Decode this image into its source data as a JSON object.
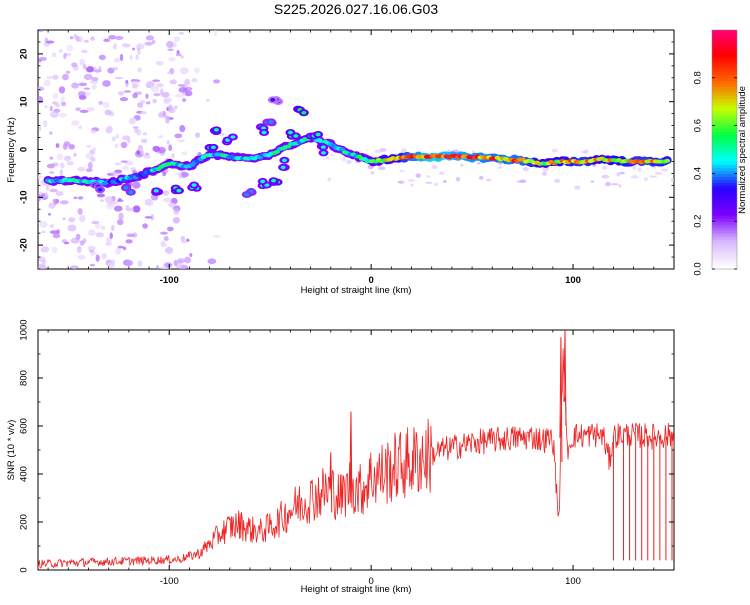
{
  "chart_data": [
    {
      "type": "heatmap",
      "title": "S225.2026.027.16.06.G03",
      "xlabel": "Height of straight line (km)",
      "ylabel": "Frequency (Hz)",
      "xlim": [
        -165,
        150
      ],
      "ylim": [
        -25,
        25
      ],
      "x_ticks": [
        -100,
        0,
        100
      ],
      "x_tick_labels": [
        "-100",
        "0",
        "100"
      ],
      "y_ticks": [
        -20,
        -10,
        0,
        10,
        20
      ],
      "y_tick_labels": [
        "-20",
        "-10",
        "0",
        "10",
        "20"
      ],
      "colorbar": {
        "label": "Normalized spectral amplitude",
        "range": [
          0,
          1
        ],
        "ticks": [
          0.0,
          0.2,
          0.4,
          0.6,
          0.8
        ],
        "tick_labels": [
          "0.0",
          "0.2",
          "0.4",
          "0.6",
          "0.8"
        ],
        "colormap_stops": [
          "#ffffff",
          "#d9b8ff",
          "#7b00ff",
          "#2a00ff",
          "#00ffff",
          "#00ff44",
          "#c8ff00",
          "#ff6600",
          "#ff0000",
          "#ff0080"
        ]
      },
      "main_track": [
        {
          "x": -160,
          "y": -6.5,
          "a": 0.45
        },
        {
          "x": -145,
          "y": -6.5,
          "a": 0.5
        },
        {
          "x": -130,
          "y": -7.0,
          "a": 0.4
        },
        {
          "x": -115,
          "y": -5.5,
          "a": 0.45
        },
        {
          "x": -100,
          "y": -3.0,
          "a": 0.5
        },
        {
          "x": -90,
          "y": -3.5,
          "a": 0.45
        },
        {
          "x": -80,
          "y": -1.0,
          "a": 0.5
        },
        {
          "x": -70,
          "y": -1.5,
          "a": 0.5
        },
        {
          "x": -60,
          "y": -2.0,
          "a": 0.45
        },
        {
          "x": -50,
          "y": -1.0,
          "a": 0.5
        },
        {
          "x": -40,
          "y": 1.0,
          "a": 0.5
        },
        {
          "x": -30,
          "y": 2.5,
          "a": 0.5
        },
        {
          "x": -20,
          "y": 1.0,
          "a": 0.45
        },
        {
          "x": -10,
          "y": -1.0,
          "a": 0.5
        },
        {
          "x": 0,
          "y": -2.5,
          "a": 0.55
        },
        {
          "x": 10,
          "y": -2.0,
          "a": 0.7
        },
        {
          "x": 20,
          "y": -1.5,
          "a": 0.85
        },
        {
          "x": 30,
          "y": -1.5,
          "a": 0.95
        },
        {
          "x": 45,
          "y": -1.5,
          "a": 0.9
        },
        {
          "x": 60,
          "y": -1.8,
          "a": 0.85
        },
        {
          "x": 75,
          "y": -2.3,
          "a": 0.85
        },
        {
          "x": 85,
          "y": -3.0,
          "a": 0.7
        },
        {
          "x": 95,
          "y": -2.5,
          "a": 0.75
        },
        {
          "x": 105,
          "y": -2.5,
          "a": 0.8
        },
        {
          "x": 115,
          "y": -2.0,
          "a": 0.7
        },
        {
          "x": 125,
          "y": -2.5,
          "a": 0.75
        },
        {
          "x": 135,
          "y": -2.5,
          "a": 0.8
        },
        {
          "x": 148,
          "y": -2.5,
          "a": 0.75
        }
      ],
      "secondary_track": [
        {
          "x": -135,
          "y": -8.0,
          "a": 0.35
        },
        {
          "x": -120,
          "y": -8.5,
          "a": 0.4
        },
        {
          "x": -105,
          "y": -8.5,
          "a": 0.45
        },
        {
          "x": -95,
          "y": -8.5,
          "a": 0.5
        },
        {
          "x": -88,
          "y": -7.5,
          "a": 0.45
        },
        {
          "x": -80,
          "y": 1.0,
          "a": 0.5
        },
        {
          "x": -77,
          "y": 3.5,
          "a": 0.5
        },
        {
          "x": -70,
          "y": 2.0,
          "a": 0.45
        },
        {
          "x": -60,
          "y": -9.0,
          "a": 0.4
        },
        {
          "x": -52,
          "y": -7.0,
          "a": 0.45
        },
        {
          "x": -47,
          "y": -6.5,
          "a": 0.5
        },
        {
          "x": -42,
          "y": -3.0,
          "a": 0.45
        },
        {
          "x": -38,
          "y": 3.0,
          "a": 0.5
        },
        {
          "x": -35,
          "y": 8.0,
          "a": 0.55
        },
        {
          "x": -55,
          "y": 4.0,
          "a": 0.45
        },
        {
          "x": -50,
          "y": 6.0,
          "a": 0.4
        },
        {
          "x": -48,
          "y": 10.0,
          "a": 0.3
        },
        {
          "x": -28,
          "y": 3.5,
          "a": 0.5
        },
        {
          "x": -25,
          "y": 0.0,
          "a": 0.45
        }
      ],
      "noise_region": [
        -165,
        -90
      ]
    },
    {
      "type": "line",
      "xlabel": "Height of straight line (km)",
      "ylabel": "SNR (10 * v/v)",
      "xlim": [
        -165,
        150
      ],
      "ylim": [
        0,
        1000
      ],
      "x_ticks": [
        -100,
        0,
        100
      ],
      "x_tick_labels": [
        "-100",
        "0",
        "100"
      ],
      "y_ticks": [
        0,
        200,
        400,
        600,
        800,
        1000
      ],
      "y_tick_labels": [
        "0",
        "200",
        "400",
        "600",
        "800",
        "1000"
      ],
      "color": "#ee2222",
      "series": [
        {
          "name": "SNR",
          "x": [
            -165,
            -150,
            -130,
            -110,
            -95,
            -85,
            -80,
            -75,
            -70,
            -65,
            -60,
            -55,
            -50,
            -45,
            -40,
            -35,
            -30,
            -25,
            -20,
            -15,
            -10,
            -5,
            0,
            5,
            10,
            15,
            20,
            25,
            30,
            35,
            40,
            45,
            50,
            55,
            60,
            65,
            70,
            75,
            80,
            85,
            90,
            93,
            95,
            97,
            100,
            105,
            110,
            115,
            118,
            120,
            125,
            130,
            135,
            140,
            145,
            150
          ],
          "values": [
            25,
            30,
            35,
            40,
            45,
            70,
            110,
            150,
            180,
            190,
            170,
            160,
            180,
            210,
            250,
            280,
            300,
            320,
            340,
            300,
            360,
            330,
            390,
            400,
            420,
            440,
            450,
            470,
            480,
            500,
            510,
            520,
            530,
            535,
            540,
            545,
            550,
            550,
            555,
            540,
            550,
            200,
            900,
            500,
            560,
            560,
            565,
            560,
            450,
            560,
            565,
            560,
            560,
            555,
            560,
            560
          ]
        }
      ],
      "spikes": [
        {
          "x": -10,
          "y": 660
        },
        {
          "x": -20,
          "y": 490
        },
        {
          "x": 94,
          "y": 970
        },
        {
          "x": 96,
          "y": 1000
        }
      ],
      "dropouts": [
        120,
        125,
        128,
        131,
        134,
        137,
        140,
        143,
        146,
        149
      ]
    }
  ]
}
